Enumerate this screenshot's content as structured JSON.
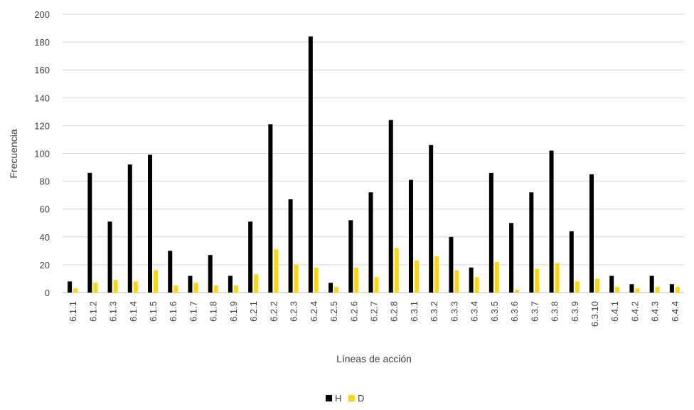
{
  "chart_data": {
    "type": "bar",
    "title": "",
    "xlabel": "Líneas de acción",
    "ylabel": "Frecuencia",
    "ylim": [
      0,
      200
    ],
    "yticks": [
      0,
      20,
      40,
      60,
      80,
      100,
      120,
      140,
      160,
      180,
      200
    ],
    "grid": true,
    "legend_position": "bottom",
    "categories": [
      "6.1.1",
      "6.1.2",
      "6.1.3",
      "6.1.4",
      "6.1.5",
      "6.1.6",
      "6.1.7",
      "6.1.8",
      "6.1.9",
      "6.2.1",
      "6.2.2",
      "6.2.3",
      "6.2.4",
      "6.2.5",
      "6.2.6",
      "6.2.7",
      "6.2.8",
      "6.3.1",
      "6.3.2",
      "6.3.3",
      "6.3.4",
      "6.3.5",
      "6.3.6",
      "6.3.7",
      "6.3.8",
      "6.3.9",
      "6.3.10",
      "6.4.1",
      "6.4.2",
      "6.4.3",
      "6.4.4"
    ],
    "series": [
      {
        "name": "H",
        "color": "#000000",
        "values": [
          8,
          86,
          51,
          92,
          99,
          30,
          12,
          27,
          12,
          51,
          121,
          67,
          184,
          7,
          52,
          72,
          124,
          81,
          106,
          40,
          18,
          86,
          50,
          72,
          102,
          44,
          85,
          12,
          6,
          12,
          6
        ]
      },
      {
        "name": "D",
        "color": "#FFD700",
        "values": [
          3,
          7,
          9,
          8,
          16,
          5,
          7,
          5,
          5,
          13,
          31,
          20,
          18,
          4,
          18,
          11,
          32,
          23,
          26,
          16,
          11,
          22,
          2,
          17,
          21,
          8,
          10,
          4,
          3,
          4,
          4
        ]
      }
    ]
  }
}
